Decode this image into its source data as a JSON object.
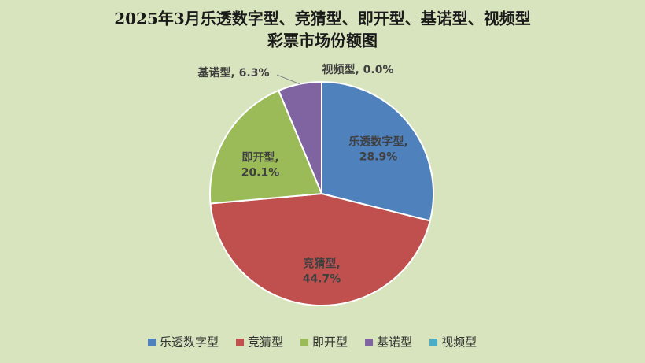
{
  "chart_data": {
    "type": "pie",
    "title": [
      "2025年3月乐透数字型、竞猜型、即开型、基诺型、视频型",
      "彩票市场份额图"
    ],
    "categories": [
      "乐透数字型",
      "竞猜型",
      "即开型",
      "基诺型",
      "视频型"
    ],
    "values": [
      28.9,
      44.7,
      20.1,
      6.3,
      0.0
    ],
    "value_labels": [
      [
        "乐透数字型,",
        "28.9%"
      ],
      [
        "竞猜型,",
        "44.7%"
      ],
      [
        "即开型,",
        "20.1%"
      ],
      [
        "基诺型, 6.3%"
      ],
      [
        "视频型, 0.0%"
      ]
    ],
    "colors": [
      "#4f81bd",
      "#c0504d",
      "#9bbb59",
      "#8064a2",
      "#4bacc6"
    ],
    "legend": "bottom"
  }
}
